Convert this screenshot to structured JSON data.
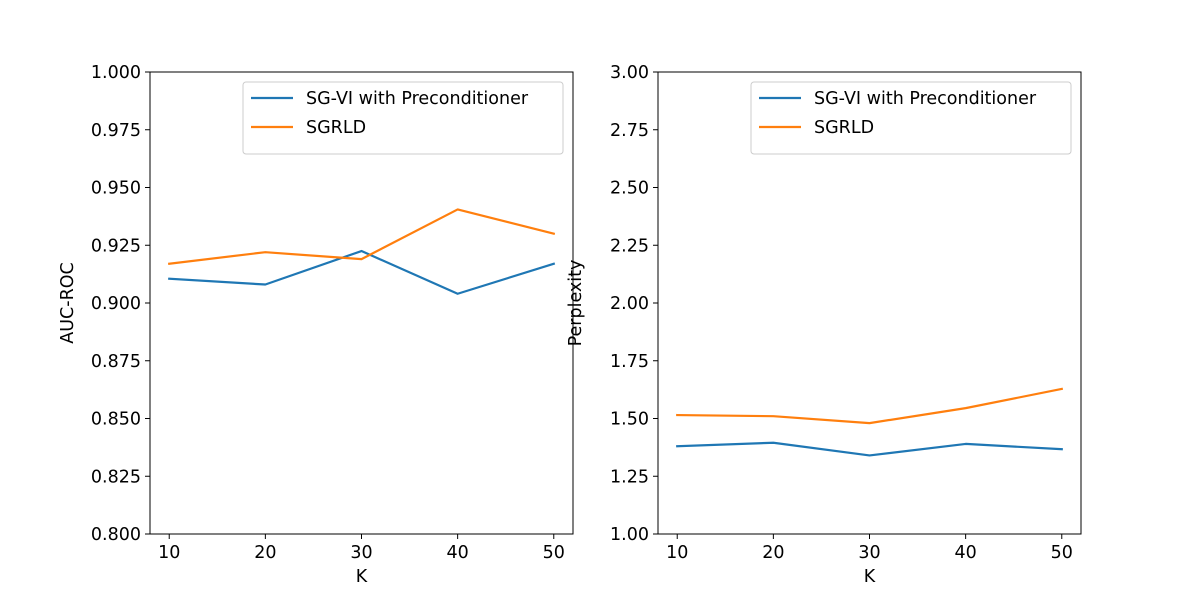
{
  "chart_data": [
    {
      "type": "line",
      "xlabel": "K",
      "ylabel": "AUC-ROC",
      "x": [
        10,
        20,
        30,
        40,
        50
      ],
      "xticks": [
        "10",
        "20",
        "30",
        "40",
        "50"
      ],
      "xlim": [
        8,
        52
      ],
      "ylim": [
        0.8,
        1.0
      ],
      "yticks": [
        "0.800",
        "0.825",
        "0.850",
        "0.875",
        "0.900",
        "0.925",
        "0.950",
        "0.975",
        "1.000"
      ],
      "grid": false,
      "legend_position": "upper right",
      "series": [
        {
          "name": "SG-VI with Preconditioner",
          "color": "#1f77b4",
          "values": [
            0.9105,
            0.908,
            0.9225,
            0.904,
            0.917
          ]
        },
        {
          "name": "SGRLD",
          "color": "#ff7f0e",
          "values": [
            0.917,
            0.922,
            0.919,
            0.9405,
            0.93
          ]
        }
      ]
    },
    {
      "type": "line",
      "xlabel": "K",
      "ylabel": "Perplexity",
      "x": [
        10,
        20,
        30,
        40,
        50
      ],
      "xticks": [
        "10",
        "20",
        "30",
        "40",
        "50"
      ],
      "xlim": [
        8,
        52
      ],
      "ylim": [
        1.0,
        3.0
      ],
      "yticks": [
        "1.00",
        "1.25",
        "1.50",
        "1.75",
        "2.00",
        "2.25",
        "2.50",
        "2.75",
        "3.00"
      ],
      "grid": false,
      "legend_position": "upper right",
      "series": [
        {
          "name": "SG-VI with Preconditioner",
          "color": "#1f77b4",
          "values": [
            1.38,
            1.395,
            1.34,
            1.39,
            1.367
          ]
        },
        {
          "name": "SGRLD",
          "color": "#ff7f0e",
          "values": [
            1.515,
            1.51,
            1.48,
            1.545,
            1.628
          ]
        }
      ]
    }
  ]
}
